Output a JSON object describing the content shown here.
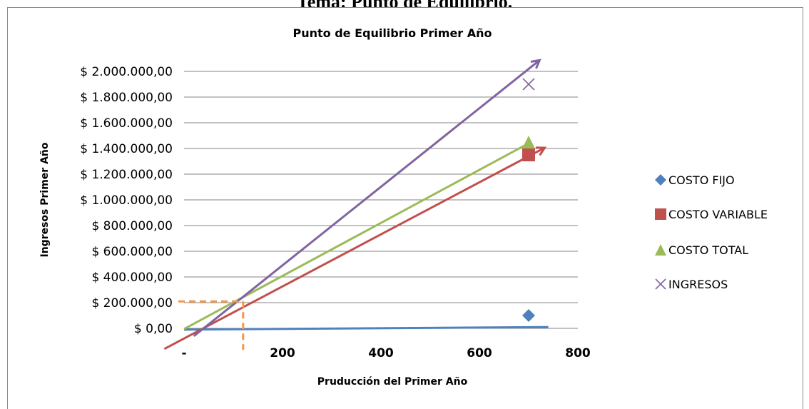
{
  "document": {
    "heading": "Tema: Punto de Equilibrio."
  },
  "chart_data": {
    "type": "scatter",
    "title": "Punto de Equilibrio Primer Año",
    "xlabel": "Pruducción del Primer Año",
    "ylabel": "Ingresos Primer Año",
    "xlim": [
      0,
      800
    ],
    "ylim": [
      0,
      2000000
    ],
    "x_ticks": [
      "-",
      "200",
      "400",
      "600",
      "800"
    ],
    "y_ticks": [
      "$ 0,00",
      "$ 200.000,00",
      "$ 400.000,00",
      "$ 600.000,00",
      "$ 800.000,00",
      "$ 1.000.000,00",
      "$ 1.200.000,00",
      "$ 1.400.000,00",
      "$ 1.600.000,00",
      "$ 1.800.000,00",
      "$ 2.000.000,00"
    ],
    "grid": "horizontal",
    "legend_position": "right",
    "series": [
      {
        "name": "COSTO FIJO",
        "marker": "diamond",
        "color": "#4f81bd",
        "points": [
          [
            700,
            100000
          ]
        ]
      },
      {
        "name": "COSTO VARIABLE",
        "marker": "square",
        "color": "#c0504d",
        "points": [
          [
            700,
            1350000
          ]
        ]
      },
      {
        "name": "COSTO TOTAL",
        "marker": "triangle",
        "color": "#9bbb59",
        "points": [
          [
            700,
            1450000
          ]
        ]
      },
      {
        "name": "INGRESOS",
        "marker": "x",
        "color": "#8064a2",
        "points": [
          [
            700,
            1900000
          ]
        ]
      }
    ],
    "annotation_lines": [
      {
        "label": "costo-fijo-line",
        "color": "#4f81bd",
        "arrow": false,
        "from": [
          0,
          -10000
        ],
        "to": [
          740,
          10000
        ]
      },
      {
        "label": "costo-total-line",
        "color": "#9bbb59",
        "arrow": false,
        "from": [
          0,
          -5000
        ],
        "to": [
          700,
          1440000
        ]
      },
      {
        "label": "costo-variable-line",
        "color": "#c0504d",
        "arrow": true,
        "from": [
          -40,
          -160000
        ],
        "to": [
          730,
          1400000
        ]
      },
      {
        "label": "ingresos-line",
        "color": "#8064a2",
        "arrow": true,
        "from": [
          20,
          -60000
        ],
        "to": [
          720,
          2080000
        ]
      }
    ],
    "break_even": {
      "x": 120,
      "y": 210000,
      "color": "#f79646"
    }
  }
}
